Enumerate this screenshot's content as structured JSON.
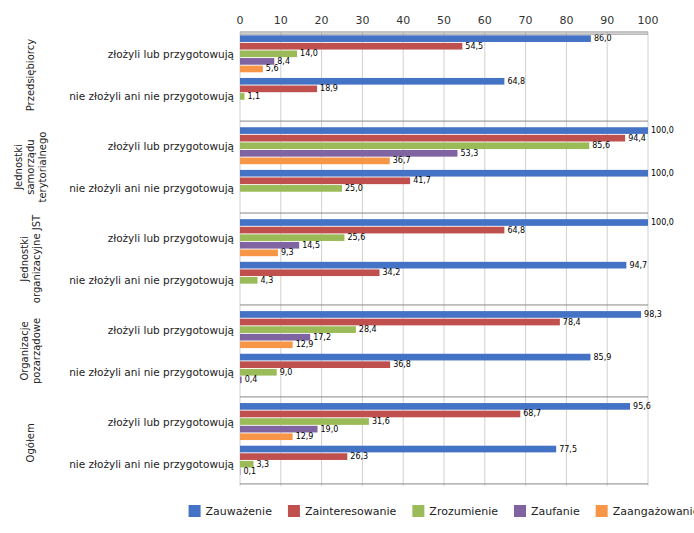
{
  "chart_data": {
    "type": "bar",
    "orientation": "horizontal",
    "categories": [
      "złożyli lub przygotowują",
      "nie złożyli ani nie przygotowują",
      "złożyli lub przygotowują",
      "nie złożyli ani nie przygotowują",
      "złożyli lub przygotowują",
      "nie złożyli ani nie przygotowują",
      "złożyli lub przygotowują",
      "nie złożyli ani nie przygotowują",
      "złożyli lub przygotowują",
      "nie złożyli ani nie przygotowują"
    ],
    "category_groups": [
      "Przedsiębiorcy",
      "Przedsiębiorcy",
      "Jednostki\nsamorządu\nterytorialnego",
      "Jednostki\nsamorządu\nterytorialnego",
      "Jednostki\norganizacyjne JST",
      "Jednostki\norganizacyjne JST",
      "Organizacje\npozarządowe",
      "Organizacje\npozarządowe",
      "Ogółem",
      "Ogółem"
    ],
    "series": [
      {
        "name": "Zauważenie",
        "color": "#4472C4",
        "values": [
          86.0,
          64.8,
          100.0,
          100.0,
          100.0,
          94.7,
          98.3,
          85.9,
          95.6,
          77.5
        ],
        "value_labels": [
          "86,0",
          "64,8",
          "100,0",
          "100,0",
          "100,0",
          "94,7",
          "98,3",
          "85,9",
          "95,6",
          "77,5"
        ]
      },
      {
        "name": "Zainteresowanie",
        "color": "#C0504D",
        "values": [
          54.5,
          18.9,
          94.4,
          41.7,
          64.8,
          34.2,
          78.4,
          36.8,
          68.7,
          26.3
        ],
        "value_labels": [
          "54,5",
          "18,9",
          "94,4",
          "41,7",
          "64,8",
          "34,2",
          "78,4",
          "36,8",
          "68,7",
          "26,3"
        ]
      },
      {
        "name": "Zrozumienie",
        "color": "#9BBB59",
        "values": [
          14.0,
          1.1,
          85.6,
          25.0,
          25.6,
          4.3,
          28.4,
          9.0,
          31.6,
          3.3
        ],
        "value_labels": [
          "14,0",
          "1,1",
          "85,6",
          "25,0",
          "25,6",
          "4,3",
          "28,4",
          "9,0",
          "31,6",
          "3,3"
        ]
      },
      {
        "name": "Zaufanie",
        "color": "#8064A2",
        "values": [
          8.4,
          null,
          53.3,
          null,
          14.5,
          null,
          17.2,
          0.4,
          19.0,
          0.1
        ],
        "value_labels": [
          "8,4",
          null,
          "53,3",
          null,
          "14,5",
          null,
          "17,2",
          "0,4",
          "19,0",
          "0,1"
        ]
      },
      {
        "name": "Zaangażowanie",
        "color": "#F79646",
        "values": [
          5.6,
          null,
          36.7,
          null,
          9.3,
          null,
          12.9,
          null,
          12.9,
          null
        ],
        "value_labels": [
          "5,6",
          null,
          "36,7",
          null,
          "9,3",
          null,
          "12,9",
          null,
          "12,9",
          null
        ]
      }
    ],
    "xlim": [
      0,
      100
    ],
    "xticks": [
      0,
      10,
      20,
      30,
      40,
      50,
      60,
      70,
      80,
      90,
      100
    ],
    "grid": true,
    "data_labels": true,
    "legend": "bottom"
  }
}
